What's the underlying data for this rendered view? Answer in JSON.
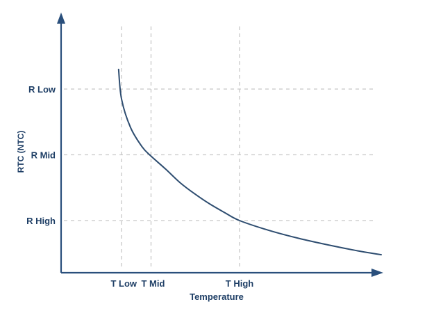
{
  "chart_data": {
    "type": "line",
    "title": "",
    "xlabel": "Temperature",
    "ylabel": "RTC (NTC)",
    "x_ticks": [
      {
        "label": "T Low",
        "value": 1
      },
      {
        "label": "T Mid",
        "value": 2
      },
      {
        "label": "T High",
        "value": 5
      }
    ],
    "y_ticks": [
      {
        "label": "R Low",
        "value": 3
      },
      {
        "label": "R Mid",
        "value": 2
      },
      {
        "label": "R High",
        "value": 1
      }
    ],
    "grid": "dashed",
    "legend": "none",
    "xlim": [
      -1,
      10.2
    ],
    "ylim": [
      0,
      4
    ],
    "series": [
      {
        "points": [
          [
            0.9,
            3.3
          ],
          [
            1.0,
            2.85
          ],
          [
            1.3,
            2.42
          ],
          [
            1.7,
            2.12
          ],
          [
            2.0,
            1.98
          ],
          [
            2.5,
            1.78
          ],
          [
            3.0,
            1.57
          ],
          [
            3.5,
            1.4
          ],
          [
            4.0,
            1.25
          ],
          [
            4.5,
            1.12
          ],
          [
            5.0,
            1.0
          ],
          [
            6.0,
            0.85
          ],
          [
            7.0,
            0.73
          ],
          [
            8.0,
            0.63
          ],
          [
            9.0,
            0.54
          ],
          [
            9.8,
            0.48
          ]
        ]
      }
    ],
    "colors": {
      "curve": "#2e4d70",
      "axis": "#2a4f7c",
      "grid": "#c8c8c8",
      "text": "#1f3f66"
    }
  }
}
